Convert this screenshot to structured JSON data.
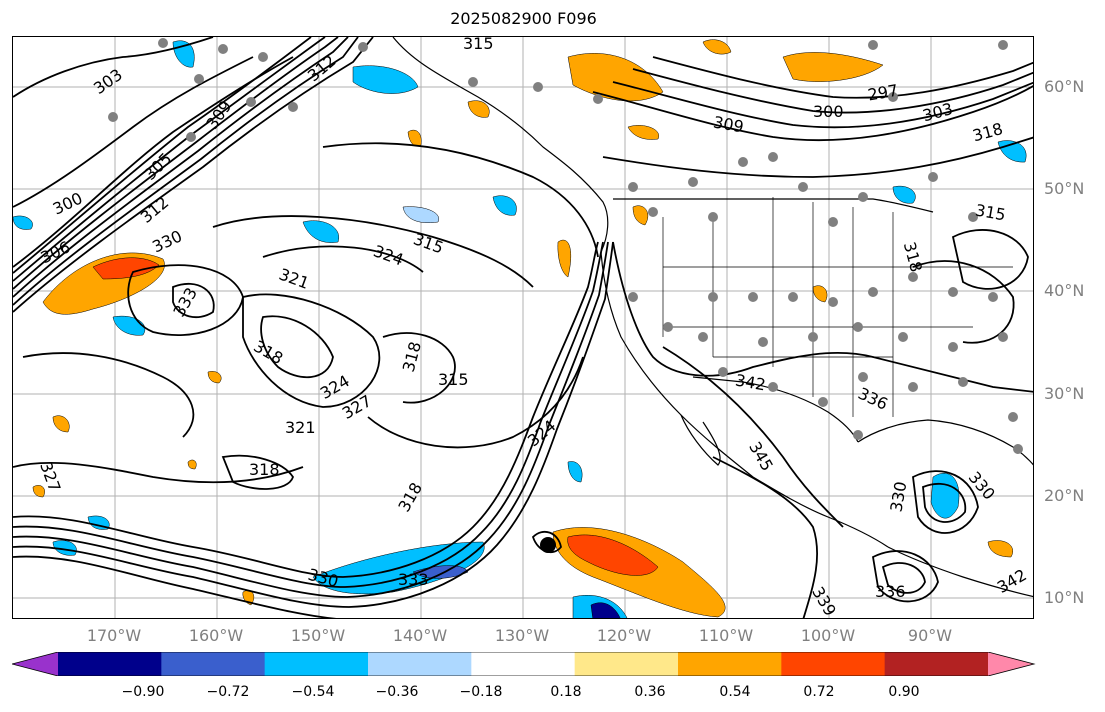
{
  "title": "2025082900 F096",
  "lat_labels": [
    "60°N",
    "50°N",
    "40°N",
    "30°N",
    "20°N",
    "10°N"
  ],
  "lon_labels": [
    "170°W",
    "160°W",
    "150°W",
    "140°W",
    "130°W",
    "120°W",
    "110°W",
    "100°W",
    "90°W"
  ],
  "contour_labels": [
    "303",
    "315",
    "312",
    "309",
    "305",
    "300",
    "306",
    "312",
    "330",
    "333",
    "321",
    "324",
    "315",
    "318",
    "324",
    "327",
    "321",
    "318",
    "327",
    "318",
    "315",
    "318",
    "324",
    "330",
    "333",
    "300",
    "309",
    "297",
    "303",
    "318",
    "315",
    "318",
    "342",
    "336",
    "345",
    "330",
    "330",
    "336",
    "339",
    "342"
  ],
  "colorbar": {
    "ticks": [
      "−0.90",
      "−0.72",
      "−0.54",
      "−0.36",
      "−0.18",
      "0.18",
      "0.36",
      "0.54",
      "0.72",
      "0.90"
    ],
    "colors": [
      "#9932cc",
      "#00008b",
      "#3a5fcd",
      "#00bfff",
      "#add8ff",
      "#ffffff",
      "#ffe88a",
      "#ffa500",
      "#ff4500",
      "#b22222",
      "#ff88aa"
    ]
  },
  "colors": {
    "contour": "#000000",
    "grid": "#808080",
    "station_dot": "#808080",
    "border": "#000000"
  }
}
